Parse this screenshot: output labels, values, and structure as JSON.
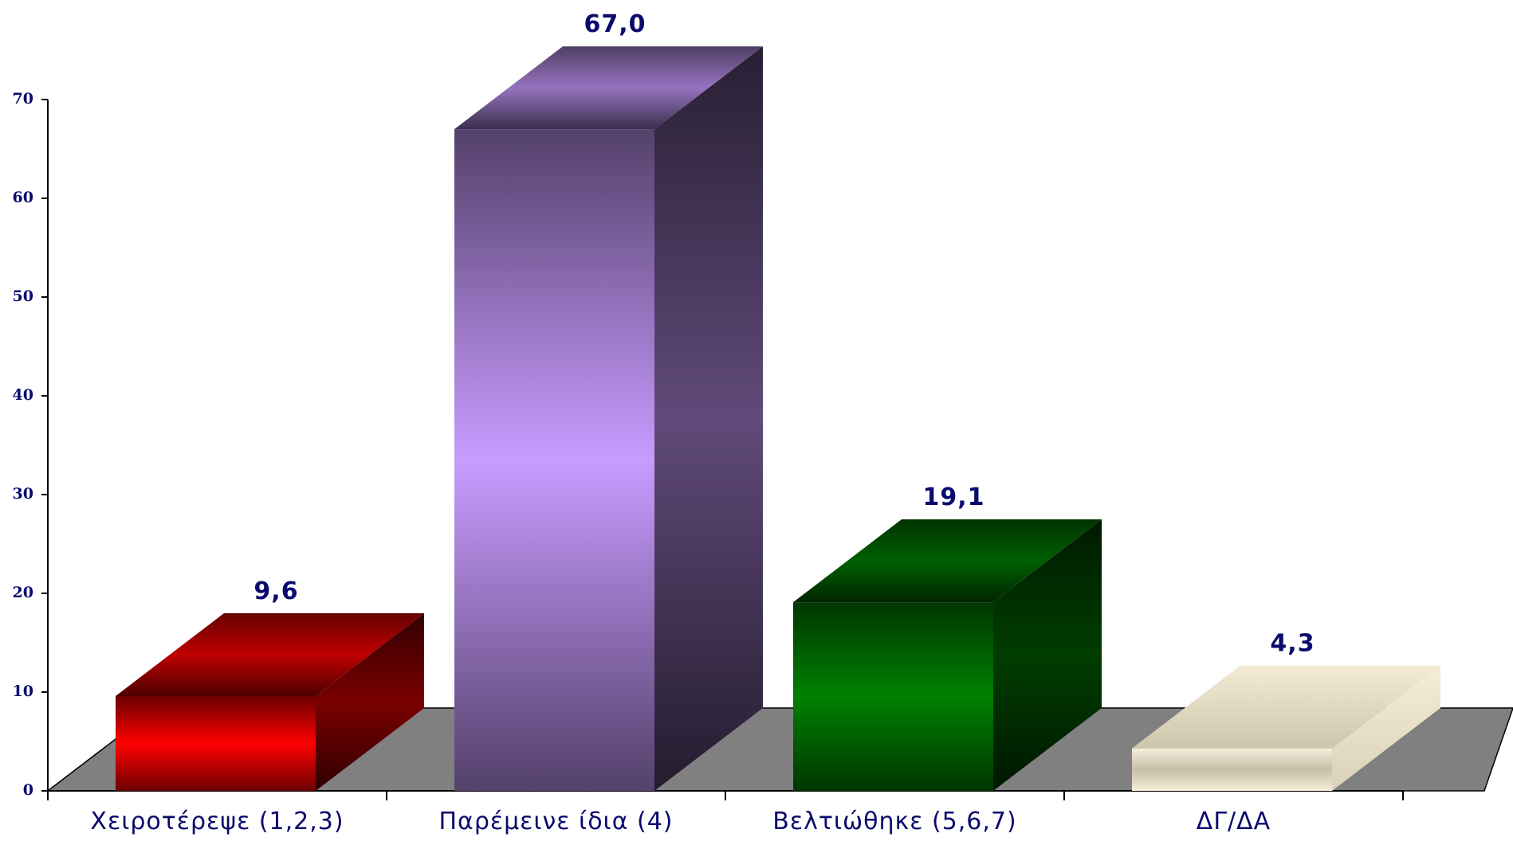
{
  "chart_data": {
    "type": "bar",
    "style": "3d",
    "categories": [
      "Χειροτέρεψε (1,2,3)",
      "Παρέμεινε ίδια (4)",
      "Βελτιώθηκε (5,6,7)",
      "ΔΓ/ΔΑ"
    ],
    "values": [
      9.6,
      67.0,
      19.1,
      4.3
    ],
    "value_labels": [
      "9,6",
      "67,0",
      "19,1",
      "4,3"
    ],
    "y_ticks": [
      "0",
      "10",
      "20",
      "30",
      "40",
      "50",
      "60",
      "70"
    ],
    "ylim": [
      0,
      70
    ],
    "title": "",
    "xlabel": "",
    "ylabel": "",
    "grid": false,
    "colors": {
      "bars": [
        "#ff0000",
        "#c89bff",
        "#008000",
        "#f2e8cc"
      ],
      "floor": "#808080",
      "text": "#0a0a6e"
    }
  }
}
